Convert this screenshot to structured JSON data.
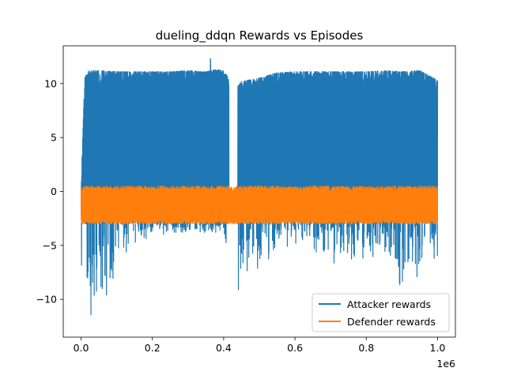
{
  "chart_data": {
    "type": "line",
    "title": "dueling_ddqn Rewards vs Episodes",
    "xlabel": "",
    "ylabel": "",
    "x_offset_text": "1e6",
    "xlim": [
      -0.05,
      1.05
    ],
    "ylim": [
      -13.5,
      13.5
    ],
    "x_ticks": [
      0.0,
      0.2,
      0.4,
      0.6,
      0.8,
      1.0
    ],
    "x_tick_labels": [
      "0.0",
      "0.2",
      "0.4",
      "0.6",
      "0.8",
      "1.0"
    ],
    "y_ticks": [
      -10,
      -5,
      0,
      5,
      10
    ],
    "y_tick_labels": [
      "−10",
      "−5",
      "0",
      "5",
      "10"
    ],
    "grid": false,
    "legend_position": "lower-right",
    "series": [
      {
        "name": "Attacker rewards",
        "color": "#1f77b4",
        "x": [
          0.0,
          0.01,
          0.02,
          0.05,
          0.1,
          0.15,
          0.2,
          0.25,
          0.3,
          0.35,
          0.38,
          0.4,
          0.42,
          0.44,
          0.45,
          0.5,
          0.55,
          0.6,
          0.65,
          0.7,
          0.75,
          0.8,
          0.85,
          0.9,
          0.95,
          1.0
        ],
        "upper": [
          0.5,
          10.5,
          11.2,
          11.2,
          11.1,
          11.1,
          11.1,
          11.1,
          11.2,
          11.1,
          11.3,
          11.2,
          10.2,
          9.8,
          10.2,
          10.5,
          11.0,
          11.1,
          11.1,
          11.1,
          11.1,
          11.1,
          11.2,
          11.1,
          11.2,
          10.3
        ],
        "lower": [
          -12.4,
          -12.4,
          -12.0,
          -10.8,
          -8.5,
          -5.5,
          -4.0,
          -4.0,
          -3.8,
          -3.8,
          -3.8,
          -3.5,
          -12.0,
          -11.0,
          -9.5,
          -7.0,
          -6.0,
          -5.5,
          -6.0,
          -7.0,
          -6.8,
          -7.0,
          -6.0,
          -9.2,
          -8.5,
          -6.0
        ],
        "peak_max": [
          0.363,
          12.3
        ],
        "gap": [
          0.415,
          0.44
        ]
      },
      {
        "name": "Defender rewards",
        "color": "#ff7f0e",
        "x": [
          0.0,
          1.0
        ],
        "upper": [
          0.5,
          0.5
        ],
        "lower": [
          -3.0,
          -3.0
        ]
      }
    ]
  }
}
